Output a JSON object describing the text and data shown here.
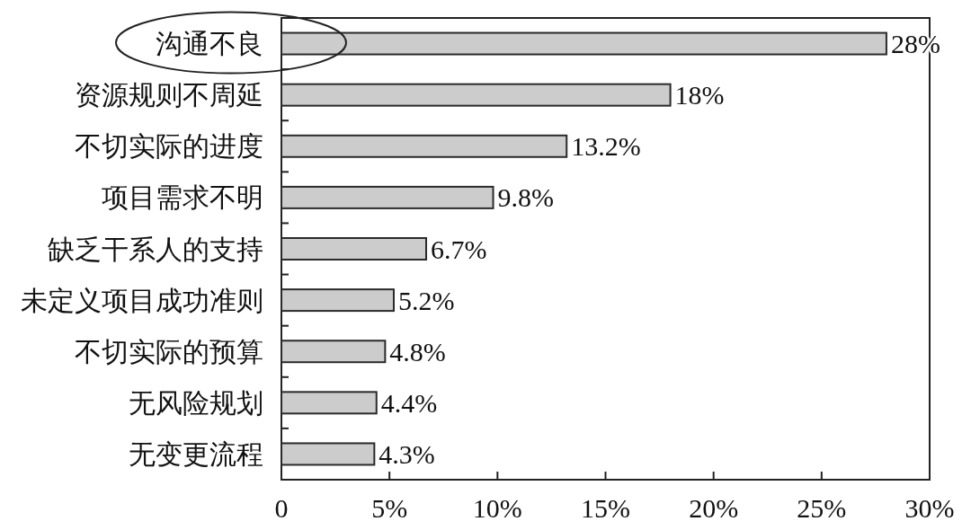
{
  "chart_data": {
    "type": "bar",
    "orientation": "horizontal",
    "categories": [
      "沟通不良",
      "资源规则不周延",
      "不切实际的进度",
      "项目需求不明",
      "缺乏干系人的支持",
      "未定义项目成功准则",
      "不切实际的预算",
      "无风险规划",
      "无变更流程"
    ],
    "values": [
      28,
      18,
      13.2,
      9.8,
      6.7,
      5.2,
      4.8,
      4.4,
      4.3
    ],
    "value_labels": [
      "28%",
      "18%",
      "13.2%",
      "9.8%",
      "6.7%",
      "5.2%",
      "4.8%",
      "4.4%",
      "4.3%"
    ],
    "color": "#cccccc",
    "xlim": [
      0,
      30
    ],
    "xticks": [
      0,
      {
        "value": 5,
        "label": "5%"
      },
      {
        "value": 10,
        "label": "10%"
      },
      {
        "value": 15,
        "label": "15%"
      },
      {
        "value": 20,
        "label": "20%"
      },
      {
        "value": 25,
        "label": "25%"
      },
      {
        "value": 30,
        "label": "30%"
      }
    ]
  }
}
